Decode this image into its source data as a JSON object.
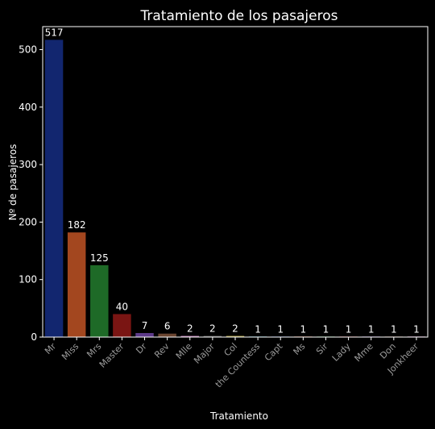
{
  "chart_data": {
    "type": "bar",
    "title": "Tratamiento de los pasajeros",
    "xlabel": "Tratamiento",
    "ylabel": "Nº de pasajeros",
    "ylim": [
      0,
      540
    ],
    "yticks": [
      0,
      100,
      200,
      300,
      400,
      500
    ],
    "grid": false,
    "legend": "none",
    "categories": [
      "Mr",
      "Miss",
      "Mrs",
      "Master",
      "Dr",
      "Rev",
      "Mlle",
      "Major",
      "Col",
      "the Countess",
      "Capt",
      "Ms",
      "Sir",
      "Lady",
      "Mme",
      "Don",
      "Jonkheer"
    ],
    "values": [
      517,
      182,
      125,
      40,
      7,
      6,
      2,
      2,
      2,
      1,
      1,
      1,
      1,
      1,
      1,
      1,
      1
    ],
    "colors": [
      "#12266f",
      "#a3471f",
      "#1e6a27",
      "#7a1513",
      "#5d3a8a",
      "#6a4530",
      "#b26fa8",
      "#5a5a5a",
      "#a89a3c",
      "#2e8aa0",
      "#12266f",
      "#a3471f",
      "#1e6a27",
      "#7a1513",
      "#5d3a8a",
      "#6a4530",
      "#b26fa8"
    ],
    "background": "#000000",
    "axis_color": "#ffffff"
  }
}
